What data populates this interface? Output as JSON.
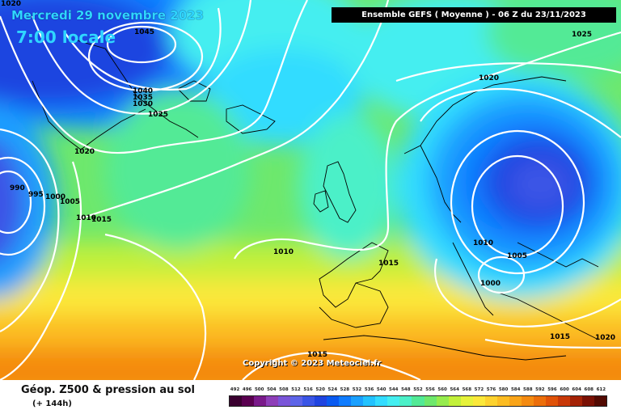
{
  "header": {
    "date": "Mercredi 29 novembre 2023",
    "time": "7:00 locale",
    "run": "Ensemble GEFS  ( Moyenne )  -  06 Z du 23/11/2023"
  },
  "copyright": "Copyright © 2023 Meteociel.fr",
  "legend": {
    "title": "Géop. Z500 & pression au sol",
    "lead": "(+ 144h)",
    "values": [
      "492",
      "496",
      "500",
      "504",
      "508",
      "512",
      "516",
      "520",
      "524",
      "528",
      "532",
      "536",
      "540",
      "544",
      "548",
      "552",
      "556",
      "560",
      "564",
      "568",
      "572",
      "576",
      "580",
      "584",
      "588",
      "592",
      "596",
      "600",
      "604",
      "608",
      "612"
    ],
    "colors": [
      "#3a0030",
      "#5a0050",
      "#7a1a8a",
      "#8e3fb8",
      "#7a55d8",
      "#5d64e8",
      "#3a55e6",
      "#1f44e0",
      "#0a5af0",
      "#0f7cff",
      "#1aa0ff",
      "#22c2ff",
      "#33dcff",
      "#44eef0",
      "#4cf0c8",
      "#52ea96",
      "#6ee86c",
      "#96ec4e",
      "#c2f03a",
      "#e6f23a",
      "#fbe83a",
      "#fdd22e",
      "#fcbc22",
      "#f9a418",
      "#f48a10",
      "#ec6e0a",
      "#e05208",
      "#c83808",
      "#a42206",
      "#7a1004",
      "#520a02"
    ]
  },
  "isobar_labels": [
    {
      "text": "1045"
    },
    {
      "text": "1040"
    },
    {
      "text": "1035"
    },
    {
      "text": "1030"
    },
    {
      "text": "1025"
    },
    {
      "text": "1020"
    },
    {
      "text": "1020"
    },
    {
      "text": "990"
    },
    {
      "text": "995"
    },
    {
      "text": "1000"
    },
    {
      "text": "1005"
    },
    {
      "text": "1010"
    },
    {
      "text": "1015"
    },
    {
      "text": "1010"
    },
    {
      "text": "1015"
    },
    {
      "text": "1010"
    },
    {
      "text": "1005"
    },
    {
      "text": "1000"
    },
    {
      "text": "1015"
    },
    {
      "text": "1020"
    },
    {
      "text": "1015"
    },
    {
      "text": "1020"
    },
    {
      "text": "1025"
    }
  ]
}
